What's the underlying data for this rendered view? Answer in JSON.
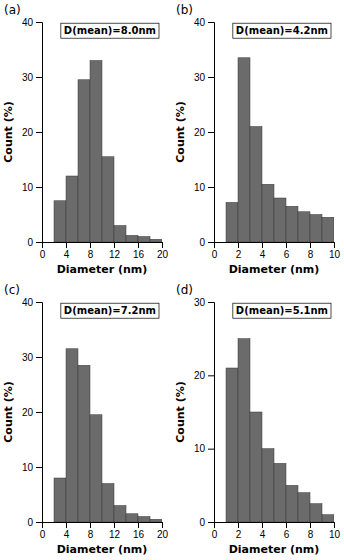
{
  "chart_data": [
    {
      "type": "histogram",
      "title": "(a)",
      "annotation": "D(mean)=8.0nm",
      "bins": [
        2,
        4,
        6,
        8,
        10,
        12,
        14,
        16,
        18,
        20
      ],
      "values": [
        7.5,
        12.0,
        29.5,
        33.0,
        15.5,
        3.0,
        1.2,
        1.0,
        0.5
      ],
      "color": "#6b6b6b",
      "xlim": [
        0,
        20
      ],
      "ylim": [
        0,
        40
      ],
      "xticks": [
        0,
        4,
        8,
        12,
        16,
        20
      ],
      "yticks": [
        0,
        10,
        20,
        30,
        40
      ],
      "xlabel": "Diameter (nm)",
      "ylabel": "Count (%)"
    },
    {
      "type": "histogram",
      "title": "(b)",
      "annotation": "D(mean)=4.2nm",
      "bins": [
        1,
        2,
        3,
        4,
        5,
        6,
        7,
        8,
        9,
        10
      ],
      "values": [
        7.2,
        33.5,
        21.0,
        10.5,
        8.0,
        6.5,
        5.5,
        5.0,
        4.5
      ],
      "color": "#6b6b6b",
      "xlim": [
        0,
        10
      ],
      "ylim": [
        0,
        40
      ],
      "xticks": [
        0,
        2,
        4,
        6,
        8,
        10
      ],
      "yticks": [
        0,
        10,
        20,
        30,
        40
      ],
      "xlabel": "Diameter (nm)",
      "ylabel": "Count (%)"
    },
    {
      "type": "histogram",
      "title": "(c)",
      "annotation": "D(mean)=7.2nm",
      "bins": [
        2,
        4,
        6,
        8,
        10,
        12,
        14,
        16,
        18,
        20
      ],
      "values": [
        8.0,
        31.5,
        28.5,
        19.5,
        7.0,
        3.0,
        1.5,
        1.0,
        0.5
      ],
      "color": "#6b6b6b",
      "xlim": [
        0,
        20
      ],
      "ylim": [
        0,
        40
      ],
      "xticks": [
        0,
        4,
        8,
        12,
        16,
        20
      ],
      "yticks": [
        0,
        10,
        20,
        30,
        40
      ],
      "xlabel": "Diameter (nm)",
      "ylabel": "Count (%)"
    },
    {
      "type": "histogram",
      "title": "(d)",
      "annotation": "D(mean)=5.1nm",
      "bins": [
        1,
        2,
        3,
        4,
        5,
        6,
        7,
        8,
        9,
        10
      ],
      "values": [
        21.0,
        25.0,
        15.0,
        10.0,
        8.0,
        5.0,
        4.0,
        2.5,
        1.0
      ],
      "color": "#6b6b6b",
      "xlim": [
        0,
        10
      ],
      "ylim": [
        0,
        30
      ],
      "xticks": [
        0,
        2,
        4,
        6,
        8,
        10
      ],
      "yticks": [
        0,
        10,
        20,
        30
      ],
      "xlabel": "Diameter (nm)",
      "ylabel": "Count (%)"
    }
  ]
}
